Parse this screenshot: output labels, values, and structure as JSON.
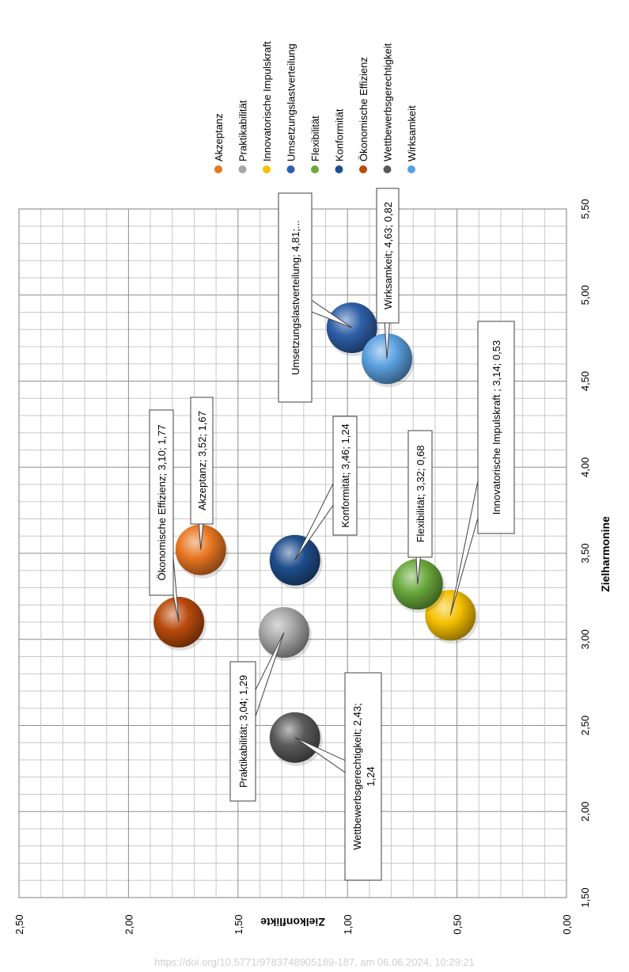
{
  "chart_data": {
    "type": "scatter",
    "title": "",
    "xlabel": "Zielharmonine",
    "ylabel": "Zielkonflikte",
    "xlim": [
      1.5,
      5.5
    ],
    "ylim": [
      0.0,
      2.5
    ],
    "x_ticks": [
      "1,50",
      "2,00",
      "2,50",
      "3,00",
      "3,50",
      "4,00",
      "4,50",
      "5,00",
      "5,50"
    ],
    "y_ticks": [
      "0,00",
      "0,50",
      "1,00",
      "1,50",
      "2,00",
      "2,50"
    ],
    "grid": true,
    "legend": "top",
    "orientation": "rotated-90-clockwise",
    "series": [
      {
        "name": "Akzeptanz",
        "x": 3.52,
        "y": 1.67,
        "color": "#e87722",
        "label": "Akzeptanz; 3,52; 1,67"
      },
      {
        "name": "Praktikabilität",
        "x": 3.04,
        "y": 1.29,
        "color": "#a6a6a6",
        "label": "Praktikabilität; 3,04; 1,29"
      },
      {
        "name": "Innovatorische Impulskraft",
        "x": 3.14,
        "y": 0.53,
        "color": "#f5c000",
        "label": "Innovatorische Impulskraft ; 3,14; 0,53"
      },
      {
        "name": "Umsetzungslastverteilung",
        "x": 4.81,
        "y": 0.98,
        "color": "#2f5fa8",
        "label": "Umsetzungslastverteilung; 4,81;..."
      },
      {
        "name": "Flexibilität",
        "x": 3.32,
        "y": 0.68,
        "color": "#6aa83c",
        "label": "Flexibilität; 3,32; 0,68"
      },
      {
        "name": "Konformität",
        "x": 3.46,
        "y": 1.24,
        "color": "#1f4e8c",
        "label": "Konformität; 3,46; 1,24"
      },
      {
        "name": "Ökonomische Effizienz",
        "x": 3.1,
        "y": 1.77,
        "color": "#b84a0c",
        "label": "Ökonomische Effizienz; 3,10; 1,77"
      },
      {
        "name": "Wettbewerbsgerechtigkeit",
        "x": 2.43,
        "y": 1.24,
        "color": "#5a5a5a",
        "label": "Wettbewerbsgerechtigkeit; 2,43; 1,24"
      },
      {
        "name": "Wirksamkeit",
        "x": 4.63,
        "y": 0.82,
        "color": "#5aa0e0",
        "label": "Wirksamkeit; 4,63; 0,82"
      }
    ]
  },
  "watermark": "https://doi.org/10.5771/9783748905189-187, am 06.06.2024, 10:29:21"
}
